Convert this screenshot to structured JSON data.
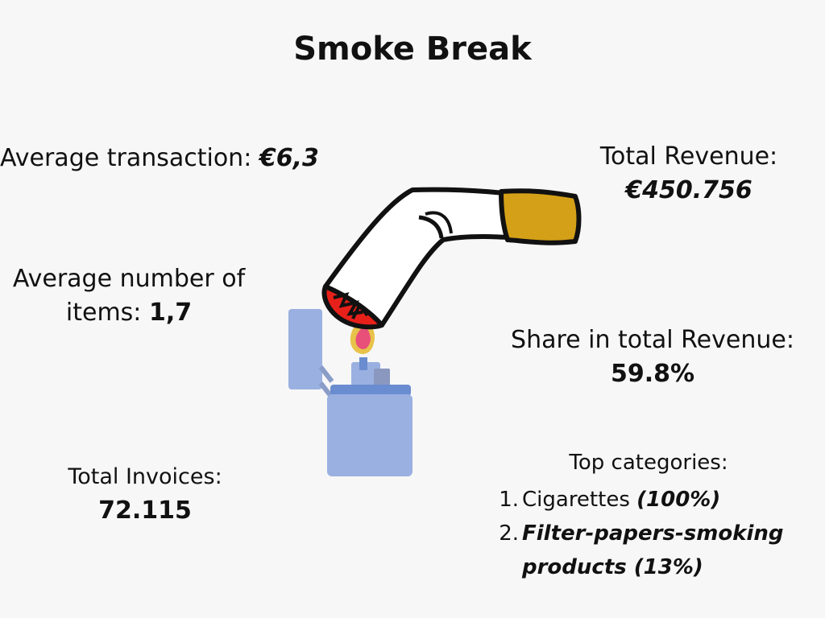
{
  "title": "Smoke Break",
  "avg_transaction": {
    "label": "Average transaction:",
    "value": "€6,3"
  },
  "avg_items": {
    "label_line1": "Average number of",
    "label_line2": "items:",
    "value": "1,7"
  },
  "total_invoices": {
    "label": "Total Invoices:",
    "value": "72.115"
  },
  "total_revenue": {
    "label": "Total Revenue:",
    "value": "€450.756"
  },
  "share_revenue": {
    "label": "Share in total Revenue:",
    "value": "59.8%"
  },
  "top_categories": {
    "label": "Top categories:",
    "items": [
      {
        "num": "1.",
        "name": "Cigarettes",
        "share": "(100%)"
      },
      {
        "num": "2.",
        "name_line1": "Filter-papers-smoking",
        "name_line2": "products (13%)"
      }
    ]
  },
  "colors": {
    "background": "#f7f7f7",
    "cigarette_filter": "#d4a017",
    "cigarette_ember": "#e8201a",
    "lighter_body": "#9ab0e0",
    "lighter_lid": "#6a8cd0",
    "flame_outer": "#e8c34a",
    "flame_inner": "#e8507a"
  },
  "illustration": {
    "icon": "cigarette-lighter-icon"
  }
}
